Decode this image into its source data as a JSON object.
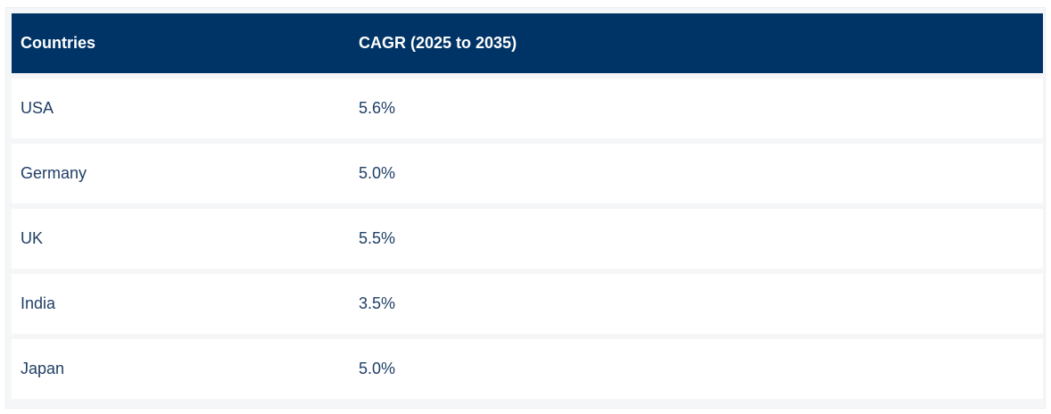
{
  "table": {
    "headers": {
      "country": "Countries",
      "cagr": "CAGR (2025 to 2035)"
    },
    "rows": [
      {
        "country": "USA",
        "cagr": "5.6%"
      },
      {
        "country": "Germany",
        "cagr": "5.0%"
      },
      {
        "country": "UK",
        "cagr": "5.5%"
      },
      {
        "country": "India",
        "cagr": "3.5%"
      },
      {
        "country": "Japan",
        "cagr": "5.0%"
      }
    ]
  },
  "colors": {
    "header_bg": "#003466",
    "header_text": "#ffffff",
    "row_text": "#1f3f66",
    "row_bg": "#ffffff",
    "frame_bg": "#f5f6f8"
  }
}
